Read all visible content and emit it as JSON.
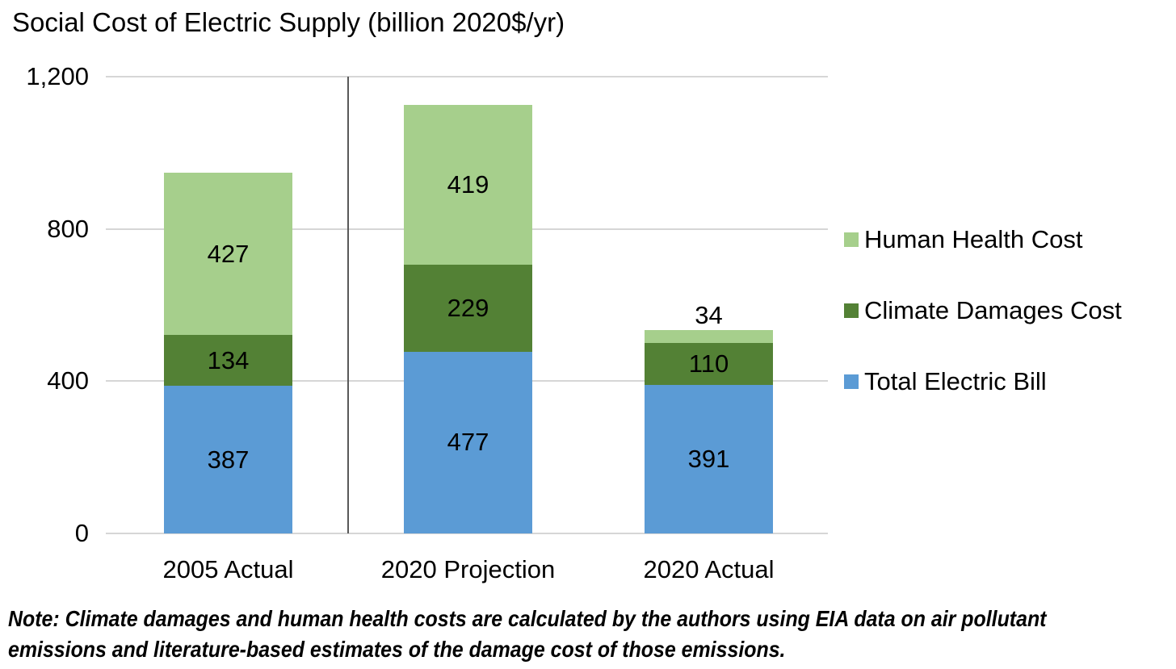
{
  "title": "Social Cost of Electric Supply (billion 2020$/yr)",
  "note": {
    "lines": [
      "Note: Climate damages and human health costs are calculated by the authors using EIA data on air pollutant",
      "emissions and literature-based estimates of the damage cost of those emissions."
    ]
  },
  "legend": [
    {
      "label": "Human Health Cost",
      "color": "#A6CF8C"
    },
    {
      "label": "Climate Damages Cost",
      "color": "#538135"
    },
    {
      "label": "Total Electric Bill",
      "color": "#5B9BD5"
    }
  ],
  "chart_data": {
    "type": "bar",
    "stacked": true,
    "title": "Social Cost of Electric Supply (billion 2020$/yr)",
    "categories": [
      "2005 Actual",
      "2020 Projection",
      "2020 Actual"
    ],
    "series": [
      {
        "name": "Total Electric Bill",
        "color": "#5B9BD5",
        "values": [
          387,
          477,
          391
        ]
      },
      {
        "name": "Climate Damages Cost",
        "color": "#538135",
        "values": [
          134,
          229,
          110
        ]
      },
      {
        "name": "Human Health Cost",
        "color": "#A6CF8C",
        "values": [
          427,
          419,
          34
        ]
      }
    ],
    "ylim": [
      0,
      1200
    ],
    "yticks": [
      {
        "value": 0,
        "label": "0"
      },
      {
        "value": 400,
        "label": "400"
      },
      {
        "value": 800,
        "label": "800"
      },
      {
        "value": 1200,
        "label": "1,200"
      }
    ],
    "grid": true,
    "legend_position": "right",
    "legend_order": [
      "Human Health Cost",
      "Climate Damages Cost",
      "Total Electric Bill"
    ],
    "separator_after_category": "2005 Actual"
  }
}
